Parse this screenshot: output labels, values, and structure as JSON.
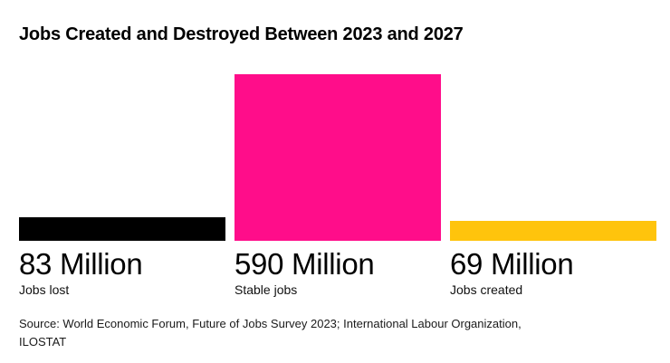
{
  "title": "Jobs Created and Destroyed Between 2023 and 2027",
  "source": {
    "lines": [
      "Source: World Economic Forum, Future of Jobs Survey 2023; International Labour Organization,",
      "ILOSTAT"
    ]
  },
  "chart_data": {
    "type": "bar",
    "title": "Jobs Created and Destroyed Between 2023 and 2027",
    "categories": [
      "Jobs lost",
      "Stable jobs",
      "Jobs created"
    ],
    "values": [
      83,
      590,
      69
    ],
    "unit": "Million",
    "value_labels": [
      "83 Million",
      "590 Million",
      "69 Million"
    ],
    "colors": [
      "#000000",
      "#FF0D8A",
      "#FFC40C"
    ],
    "ylim": [
      0,
      590
    ],
    "grid": false,
    "legend": "none",
    "orientation": "vertical"
  }
}
